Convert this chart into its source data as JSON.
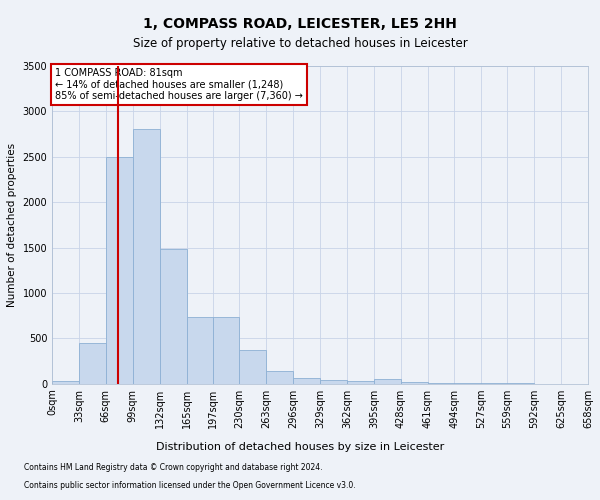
{
  "title": "1, COMPASS ROAD, LEICESTER, LE5 2HH",
  "subtitle": "Size of property relative to detached houses in Leicester",
  "xlabel": "Distribution of detached houses by size in Leicester",
  "ylabel": "Number of detached properties",
  "footnote1": "Contains HM Land Registry data © Crown copyright and database right 2024.",
  "footnote2": "Contains public sector information licensed under the Open Government Licence v3.0.",
  "annotation_line1": "1 COMPASS ROAD: 81sqm",
  "annotation_line2": "← 14% of detached houses are smaller (1,248)",
  "annotation_line3": "85% of semi-detached houses are larger (7,360) →",
  "property_size": 81,
  "bin_edges": [
    0,
    33,
    66,
    99,
    132,
    165,
    197,
    230,
    263,
    296,
    329,
    362,
    395,
    428,
    461,
    494,
    527,
    559,
    592,
    625,
    658
  ],
  "bin_labels": [
    "0sqm",
    "33sqm",
    "66sqm",
    "99sqm",
    "132sqm",
    "165sqm",
    "197sqm",
    "230sqm",
    "263sqm",
    "296sqm",
    "329sqm",
    "362sqm",
    "395sqm",
    "428sqm",
    "461sqm",
    "494sqm",
    "527sqm",
    "559sqm",
    "592sqm",
    "625sqm",
    "658sqm"
  ],
  "bar_values": [
    25,
    450,
    2500,
    2800,
    1480,
    730,
    730,
    370,
    135,
    65,
    40,
    25,
    50,
    18,
    8,
    6,
    4,
    3,
    2,
    1
  ],
  "bar_color": "#c8d8ed",
  "bar_edgecolor": "#8db0d4",
  "vline_color": "#cc0000",
  "vline_x": 81,
  "ylim": [
    0,
    3500
  ],
  "yticks": [
    0,
    500,
    1000,
    1500,
    2000,
    2500,
    3000,
    3500
  ],
  "annotation_box_edgecolor": "#cc0000",
  "annotation_box_facecolor": "#ffffff",
  "grid_color": "#c8d4e8",
  "bg_color": "#eef2f8",
  "title_fontsize": 10,
  "subtitle_fontsize": 8.5,
  "ylabel_fontsize": 7.5,
  "xlabel_fontsize": 8,
  "tick_fontsize": 7,
  "annot_fontsize": 7,
  "footnote_fontsize": 5.5
}
